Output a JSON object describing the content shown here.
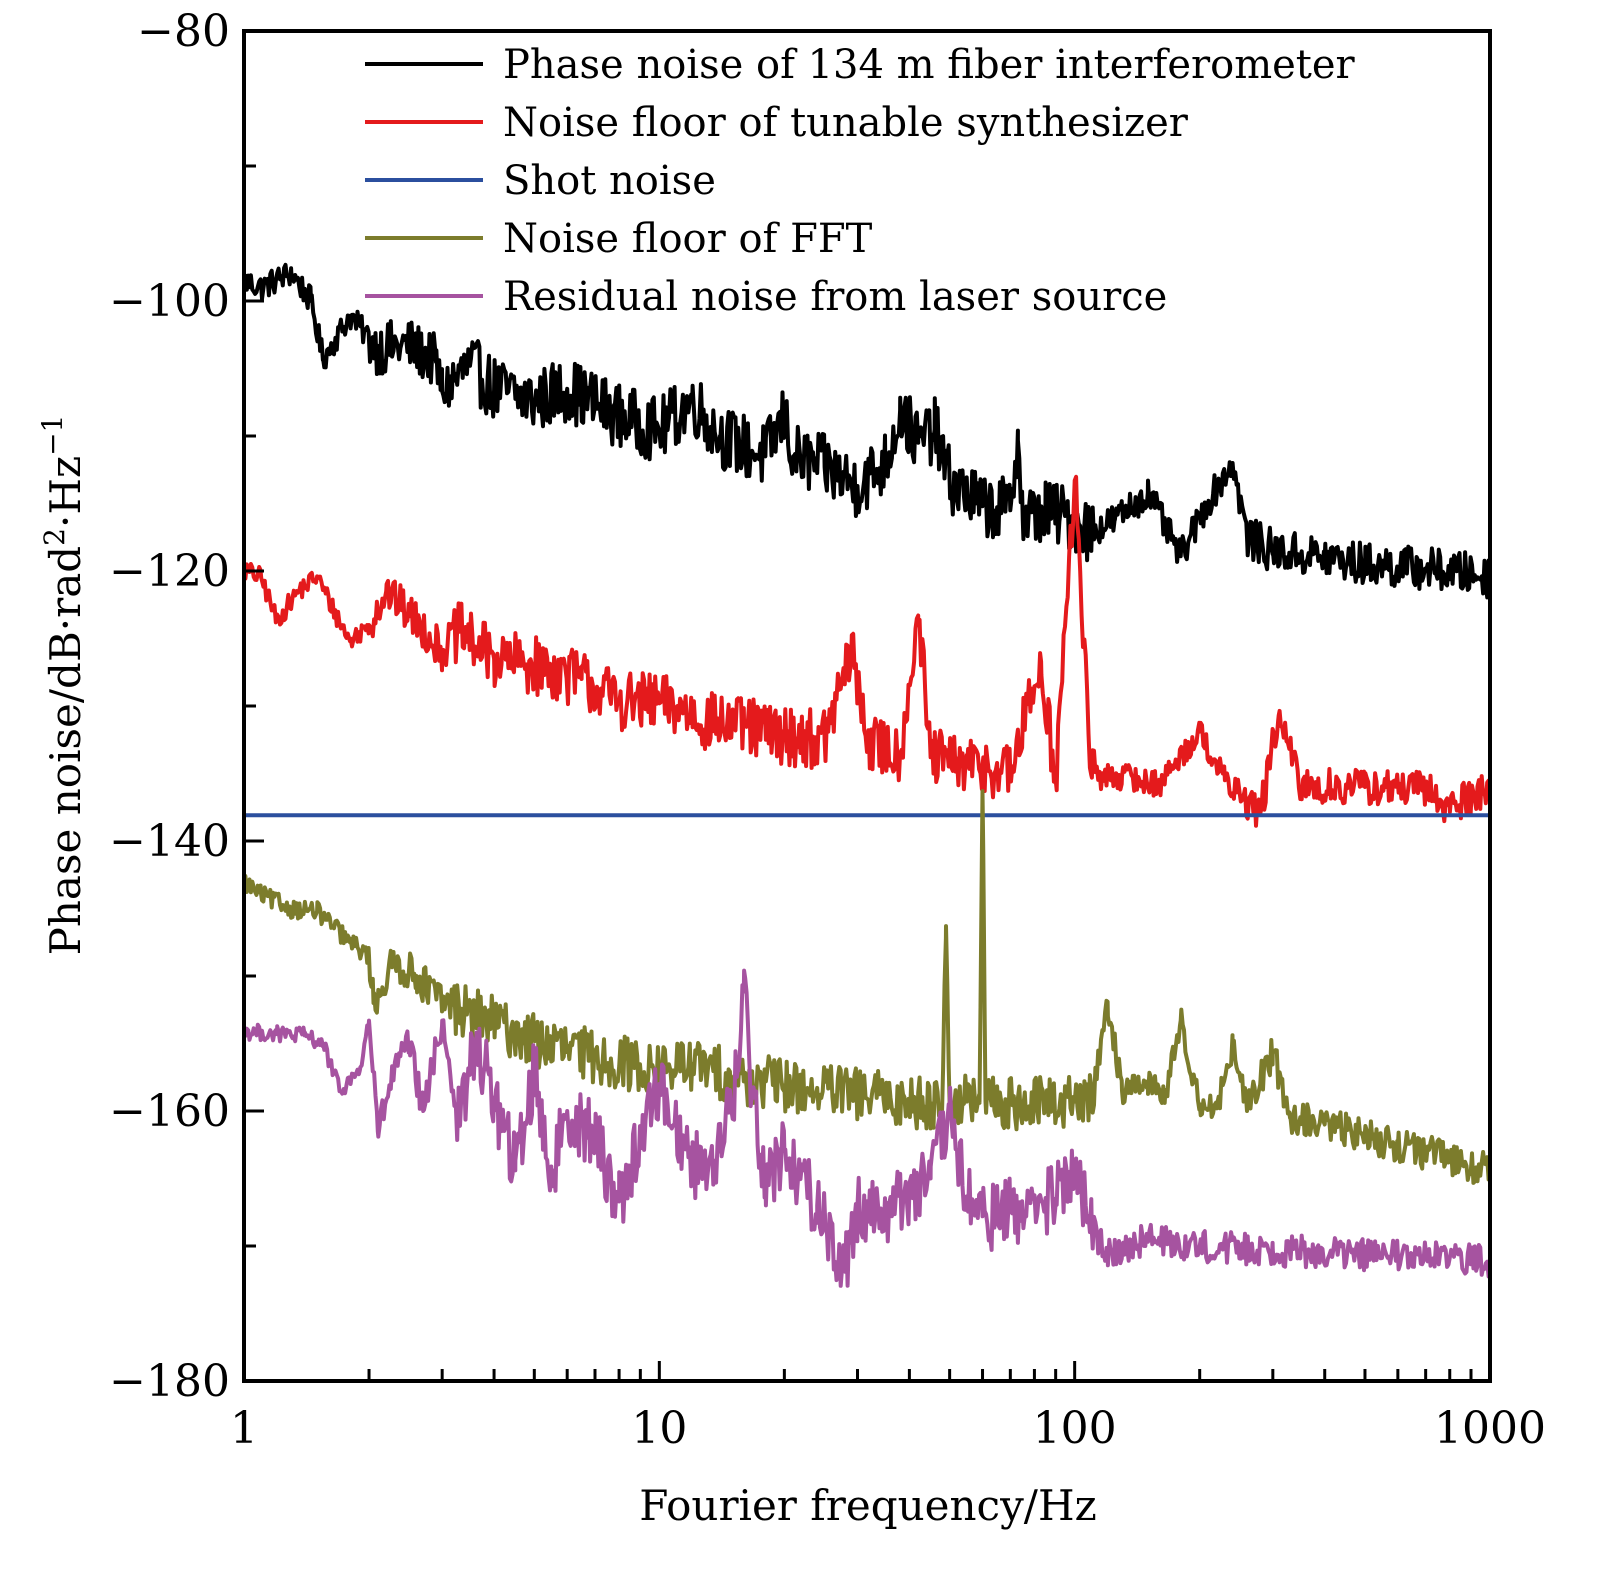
{
  "chart_data": {
    "type": "line",
    "title": "",
    "xlabel": "Fourier frequency/Hz",
    "ylabel": "Phase noise/dB·rad²·Hz⁻¹",
    "ylabel_parts": {
      "main": "Phase noise/dB·rad",
      "sup1": "2",
      "mid": "·Hz",
      "sup2": "−1"
    },
    "xscale": "log",
    "xlim": [
      1,
      1000
    ],
    "ylim": [
      -180,
      -80
    ],
    "x_ticks": [
      {
        "value": 1,
        "label": "1"
      },
      {
        "value": 10,
        "label": "10"
      },
      {
        "value": 100,
        "label": "100"
      },
      {
        "value": 1000,
        "label": "1000"
      }
    ],
    "y_ticks": [
      {
        "value": -80,
        "label": "−80"
      },
      {
        "value": -100,
        "label": "−100"
      },
      {
        "value": -120,
        "label": "−120"
      },
      {
        "value": -140,
        "label": "−140"
      },
      {
        "value": -160,
        "label": "−160"
      },
      {
        "value": -180,
        "label": "−180"
      }
    ],
    "y_minor_ticks": [
      -90,
      -110,
      -130,
      -150,
      -170
    ],
    "grid": false,
    "legend_position": "top-right",
    "series": [
      {
        "name": "Phase noise of 134 m fiber interferometer",
        "color": "#000000",
        "x": [
          1,
          1.1,
          1.3,
          1.45,
          1.55,
          1.8,
          2.1,
          2.5,
          2.9,
          3.0,
          3.5,
          4,
          5,
          6,
          8,
          10,
          12,
          14,
          18,
          20,
          21,
          25,
          30,
          35,
          38,
          42,
          46,
          50,
          60,
          70,
          73,
          75,
          85,
          100,
          110,
          125,
          150,
          180,
          210,
          240,
          260,
          300,
          400,
          500,
          700,
          1000
        ],
        "y": [
          -98.5,
          -99,
          -97.9,
          -100,
          -104.3,
          -101.1,
          -103.5,
          -103.3,
          -104.5,
          -106.7,
          -104.8,
          -106.5,
          -107.4,
          -106.5,
          -108.5,
          -109.6,
          -107.4,
          -110,
          -111.5,
          -108.5,
          -111.5,
          -112.3,
          -113.7,
          -112,
          -108.1,
          -110.5,
          -109.5,
          -113.3,
          -115.2,
          -115.5,
          -109.6,
          -116.3,
          -115.5,
          -116.3,
          -117,
          -116.2,
          -114.2,
          -118.9,
          -114.8,
          -112,
          -117.5,
          -118.5,
          -119,
          -119.5,
          -119.8,
          -120.4
        ],
        "noise_amplitude_db": [
          2.0,
          2.4,
          1.2,
          1.6
        ]
      },
      {
        "name": "Noise floor of tunable synthesizer",
        "color": "#e41a1c",
        "x": [
          1,
          1.1,
          1.2,
          1.35,
          1.5,
          1.65,
          1.8,
          2,
          2.2,
          2.6,
          3,
          3.3,
          4,
          5,
          6.5,
          8,
          10,
          12,
          13,
          16,
          20,
          25,
          29,
          32,
          38,
          42,
          45,
          55,
          60,
          70,
          83,
          90,
          100,
          110,
          130,
          160,
          200,
          230,
          280,
          310,
          350,
          500,
          700,
          800,
          1000
        ],
        "y": [
          -119.9,
          -120.5,
          -123.7,
          -121.5,
          -120.4,
          -123,
          -125.2,
          -124,
          -121.5,
          -123.7,
          -125.9,
          -124.5,
          -126.5,
          -127,
          -128,
          -129.6,
          -129.8,
          -130.5,
          -131.1,
          -131.5,
          -132.2,
          -132.5,
          -125.9,
          -132.8,
          -133.5,
          -123.3,
          -133.8,
          -134.5,
          -134.4,
          -135,
          -126.7,
          -135.5,
          -113.3,
          -135.3,
          -135.2,
          -135.8,
          -131.9,
          -135.5,
          -137.9,
          -130.7,
          -136,
          -136,
          -136.2,
          -137.5,
          -135.9
        ],
        "noise_amplitude_db": [
          1.5,
          2.2,
          1.0,
          1.4
        ]
      },
      {
        "name": "Shot noise",
        "color": "#2b4f9e",
        "x": [
          1,
          1000
        ],
        "y": [
          -138.1,
          -138.1
        ],
        "noise_amplitude_db": [
          0,
          0,
          0,
          0
        ]
      },
      {
        "name": "Noise floor of FFT",
        "color": "#7c7c2c",
        "x": [
          1,
          1.1,
          1.3,
          1.5,
          1.8,
          2,
          2.05,
          2.3,
          2.6,
          3,
          4,
          5,
          7,
          10,
          12,
          15,
          20,
          30,
          40,
          48,
          49,
          50,
          51,
          55,
          59,
          60,
          61,
          70,
          100,
          110,
          120,
          130,
          150,
          165,
          180,
          200,
          220,
          240,
          260,
          300,
          330,
          400,
          600,
          1000
        ],
        "y": [
          -143,
          -144,
          -145,
          -145.2,
          -147.5,
          -148.5,
          -152,
          -149,
          -150,
          -151.9,
          -153.5,
          -154.8,
          -156,
          -157,
          -156.5,
          -157.5,
          -158.1,
          -158.8,
          -159.3,
          -159.3,
          -146.3,
          -159.3,
          -159.5,
          -159.3,
          -159.4,
          -136.3,
          -159.3,
          -159.5,
          -159.3,
          -159.2,
          -151.9,
          -158.5,
          -157.8,
          -159,
          -153.3,
          -159.5,
          -159.8,
          -155.2,
          -160,
          -155.6,
          -160.5,
          -161,
          -162.5,
          -164.4
        ],
        "noise_amplitude_db": [
          1.4,
          2.0,
          1.0,
          1.3
        ]
      },
      {
        "name": "Residual noise from laser source",
        "color": "#a653a0",
        "x": [
          1,
          1.2,
          1.4,
          1.55,
          1.7,
          1.9,
          2,
          2.1,
          2.3,
          2.5,
          2.7,
          3,
          3.3,
          3.6,
          4,
          4.5,
          5,
          5.5,
          6,
          7,
          8,
          9,
          10,
          12,
          14,
          15.5,
          16,
          16.5,
          18,
          20,
          24,
          28,
          30,
          35,
          40,
          45,
          50,
          55,
          60,
          70,
          90,
          100,
          110,
          120,
          150,
          200,
          300,
          500,
          1000
        ],
        "y": [
          -154.1,
          -154.3,
          -154.4,
          -155,
          -158.5,
          -157,
          -153.3,
          -161.5,
          -157,
          -155,
          -160,
          -153.3,
          -161,
          -155,
          -159,
          -164.4,
          -157,
          -165,
          -160,
          -162,
          -166.7,
          -162,
          -158,
          -164,
          -163,
          -157,
          -149.6,
          -157,
          -165,
          -163,
          -167,
          -171.9,
          -167,
          -167.5,
          -165.9,
          -165,
          -160.4,
          -166.5,
          -167.8,
          -167.5,
          -166.5,
          -164.4,
          -169,
          -170.4,
          -169.5,
          -170,
          -170.3,
          -170.6,
          -171.1
        ],
        "noise_amplitude_db": [
          1.2,
          2.6,
          1.2,
          1.2
        ]
      }
    ]
  }
}
